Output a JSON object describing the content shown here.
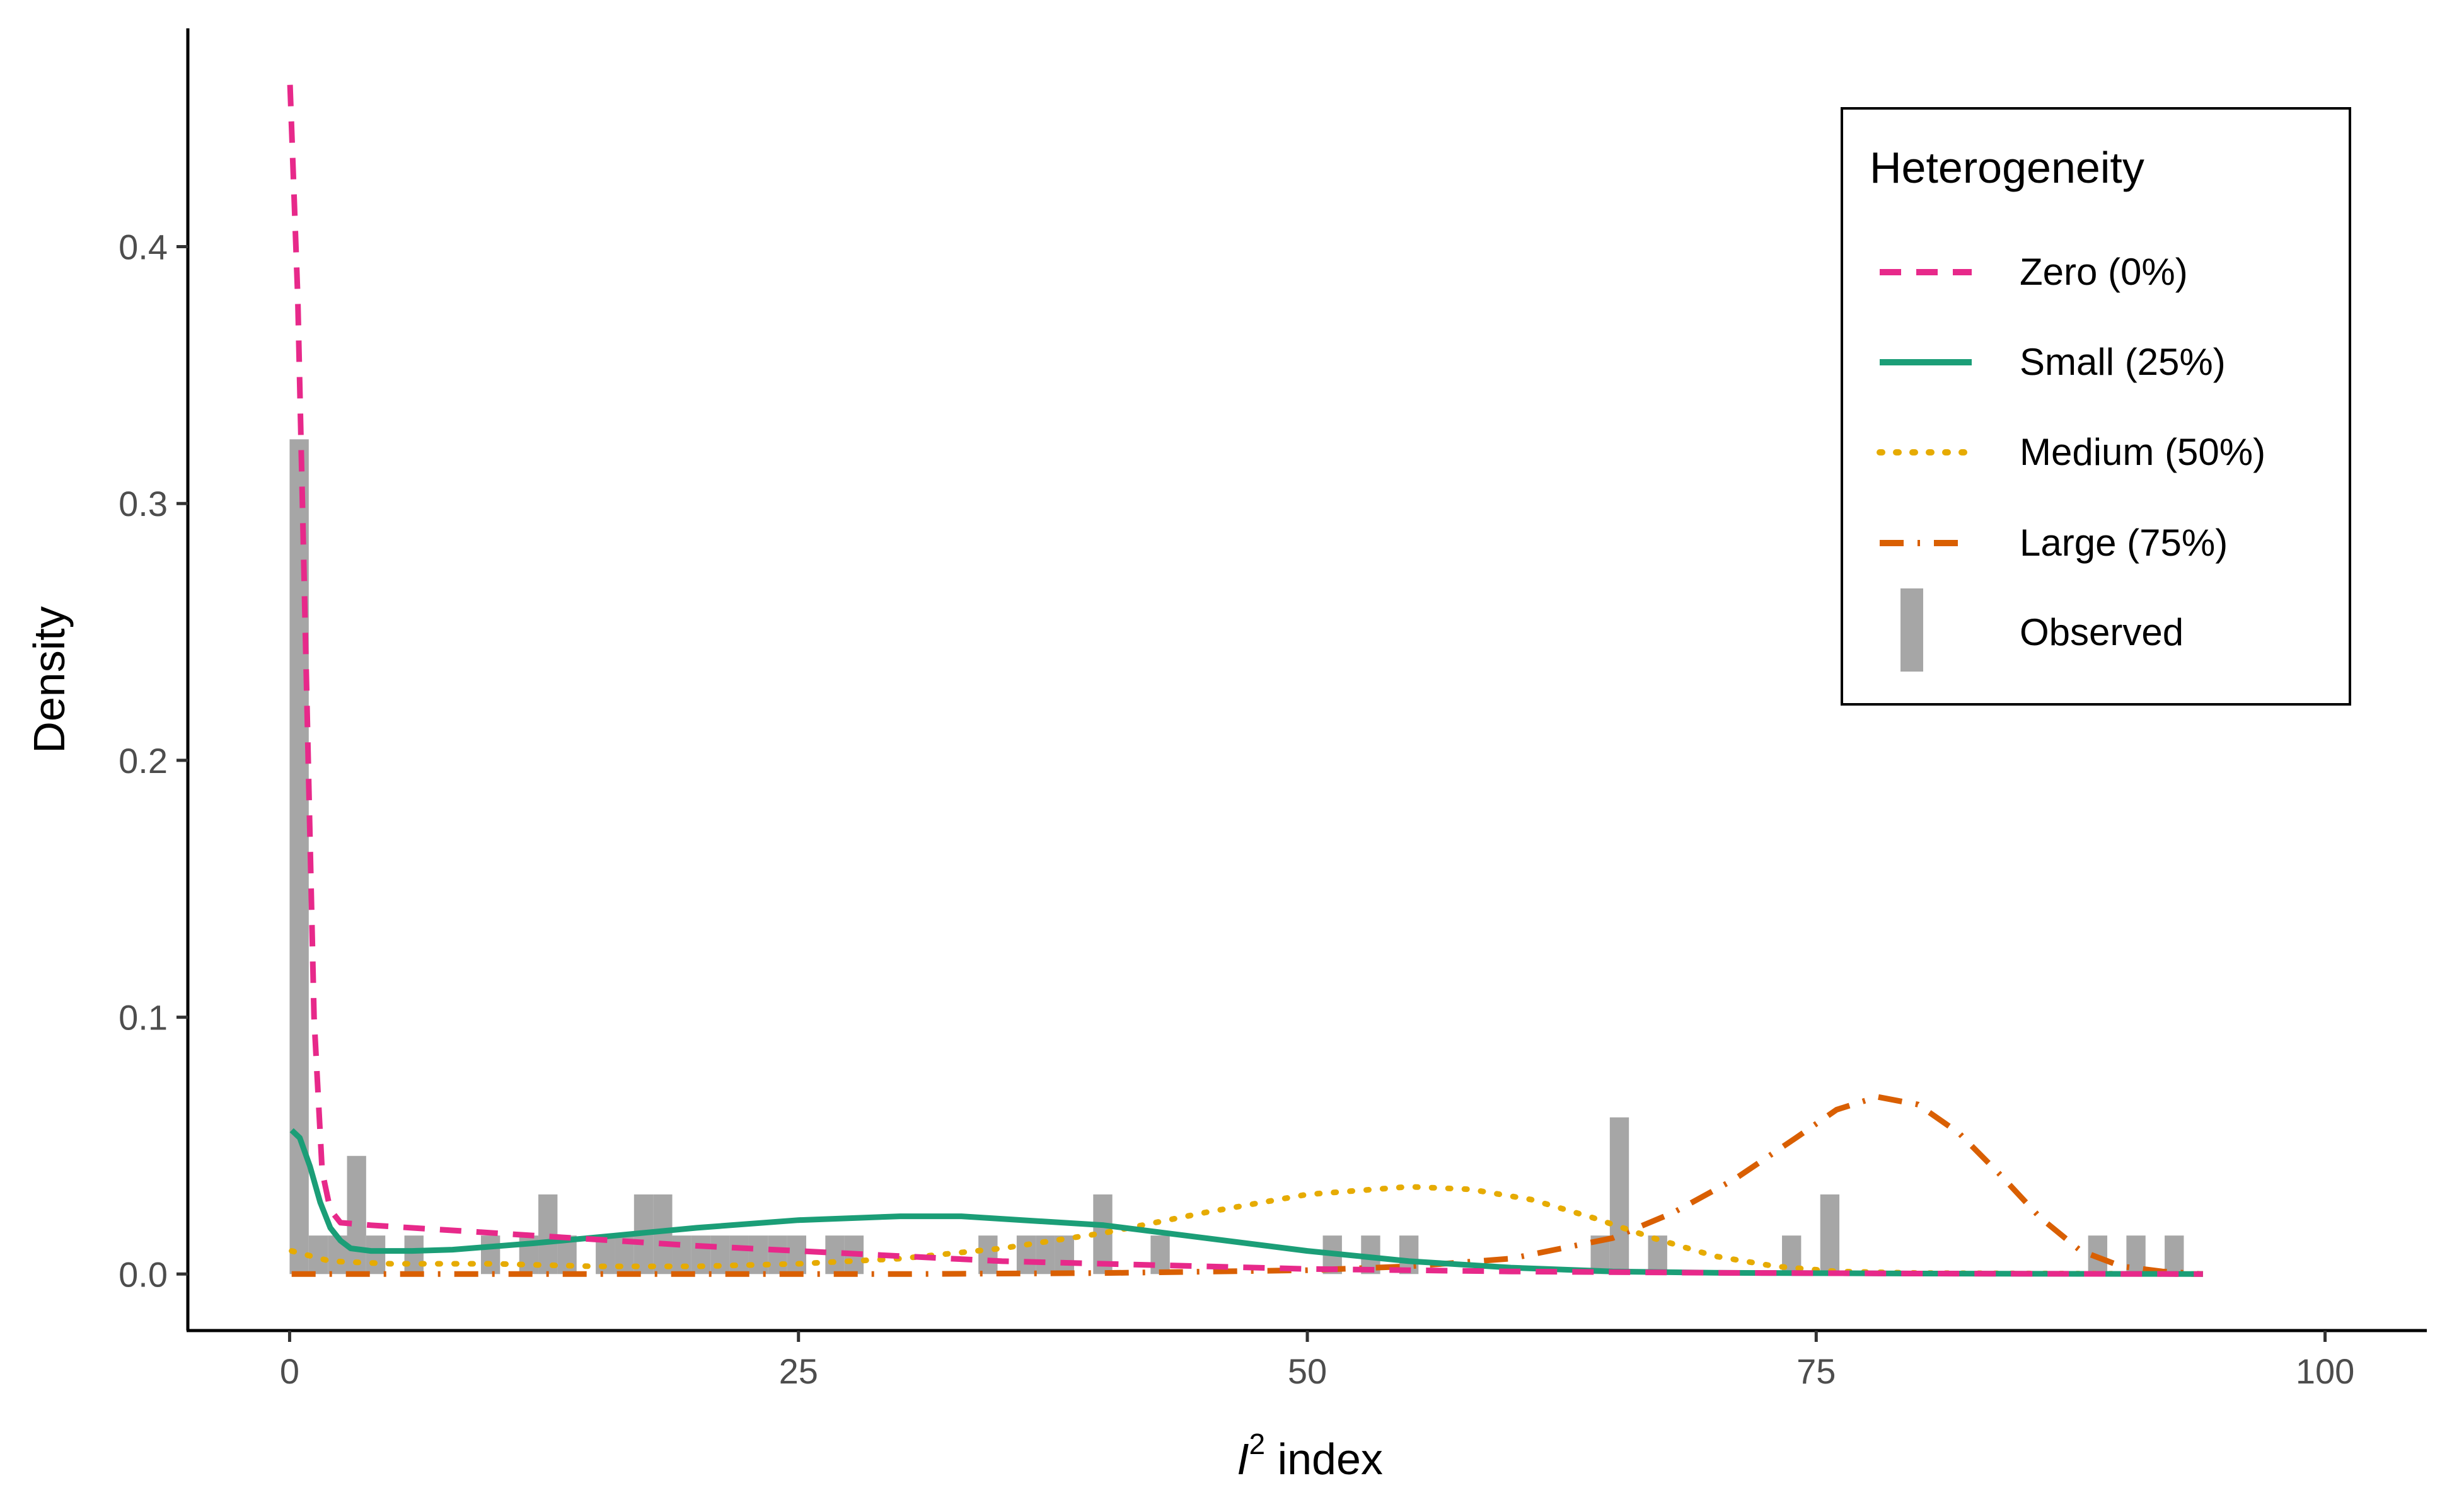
{
  "chart_data": {
    "type": "histogram with density curves",
    "xlabel": {
      "base": "I",
      "superscript": "2",
      "rest": " index"
    },
    "ylabel": "Density",
    "xlim": [
      -5,
      105
    ],
    "ylim": [
      -0.022,
      0.485
    ],
    "x_ticks": [
      {
        "value": 0,
        "label": "0"
      },
      {
        "value": 25,
        "label": "25"
      },
      {
        "value": 50,
        "label": "50"
      },
      {
        "value": 75,
        "label": "75"
      },
      {
        "value": 100,
        "label": "100"
      }
    ],
    "y_ticks": [
      {
        "value": 0.0,
        "label": "0.0"
      },
      {
        "value": 0.1,
        "label": "0.1"
      },
      {
        "value": 0.2,
        "label": "0.2"
      },
      {
        "value": 0.3,
        "label": "0.3"
      },
      {
        "value": 0.4,
        "label": "0.4"
      }
    ],
    "grid": false,
    "legend": {
      "title": "Heterogeneity",
      "position": "top-right",
      "entries": [
        {
          "label": "Zero (0%)",
          "style": "dashed",
          "color": "#E7298A"
        },
        {
          "label": "Small (25%)",
          "style": "solid",
          "color": "#1B9E77"
        },
        {
          "label": "Medium (50%)",
          "style": "dotted",
          "color": "#E6AB02"
        },
        {
          "label": "Large (75%)",
          "style": "dashdot",
          "color": "#D95F02"
        },
        {
          "label": "Observed",
          "style": "bar",
          "color": "#A6A6A6"
        }
      ]
    },
    "histogram": {
      "name": "Observed",
      "color": "#A6A6A6",
      "bin_width": 0.94,
      "bins": [
        [
          0.0,
          0.325
        ],
        [
          0.94,
          0.015
        ],
        [
          1.88,
          0.015
        ],
        [
          2.82,
          0.046
        ],
        [
          3.76,
          0.015
        ],
        [
          5.64,
          0.015
        ],
        [
          9.4,
          0.015
        ],
        [
          11.28,
          0.015
        ],
        [
          12.22,
          0.031
        ],
        [
          13.16,
          0.015
        ],
        [
          15.04,
          0.015
        ],
        [
          15.98,
          0.015
        ],
        [
          16.92,
          0.031
        ],
        [
          17.86,
          0.031
        ],
        [
          18.8,
          0.015
        ],
        [
          19.74,
          0.015
        ],
        [
          20.68,
          0.015
        ],
        [
          21.62,
          0.015
        ],
        [
          22.56,
          0.015
        ],
        [
          23.5,
          0.015
        ],
        [
          24.44,
          0.015
        ],
        [
          26.32,
          0.015
        ],
        [
          27.26,
          0.015
        ],
        [
          33.84,
          0.015
        ],
        [
          35.72,
          0.015
        ],
        [
          36.66,
          0.015
        ],
        [
          37.6,
          0.015
        ],
        [
          39.48,
          0.031
        ],
        [
          42.3,
          0.015
        ],
        [
          50.76,
          0.015
        ],
        [
          52.64,
          0.015
        ],
        [
          54.52,
          0.015
        ],
        [
          63.92,
          0.015
        ],
        [
          64.86,
          0.061
        ],
        [
          66.74,
          0.015
        ],
        [
          73.32,
          0.015
        ],
        [
          75.2,
          0.031
        ],
        [
          88.36,
          0.015
        ],
        [
          90.24,
          0.015
        ],
        [
          92.12,
          0.015
        ]
      ]
    },
    "series": [
      {
        "name": "Zero (0%)",
        "color": "#E7298A",
        "style": "dashed",
        "points": [
          [
            0.02,
            0.463
          ],
          [
            0.4,
            0.38
          ],
          [
            0.8,
            0.24
          ],
          [
            1.2,
            0.1
          ],
          [
            1.6,
            0.04
          ],
          [
            2,
            0.025
          ],
          [
            2.5,
            0.02
          ],
          [
            4,
            0.019
          ],
          [
            8,
            0.017
          ],
          [
            12,
            0.015
          ],
          [
            16,
            0.013
          ],
          [
            20,
            0.011
          ],
          [
            25,
            0.009
          ],
          [
            30,
            0.007
          ],
          [
            35,
            0.005
          ],
          [
            40,
            0.004
          ],
          [
            45,
            0.003
          ],
          [
            50,
            0.002
          ],
          [
            55,
            0.0015
          ],
          [
            60,
            0.001
          ],
          [
            70,
            0.0005
          ],
          [
            80,
            0.0002
          ],
          [
            94,
            0.0
          ]
        ]
      },
      {
        "name": "Small (25%)",
        "color": "#1B9E77",
        "style": "solid",
        "points": [
          [
            0.1,
            0.056
          ],
          [
            0.5,
            0.053
          ],
          [
            1,
            0.042
          ],
          [
            1.5,
            0.028
          ],
          [
            2,
            0.018
          ],
          [
            2.5,
            0.013
          ],
          [
            3,
            0.01
          ],
          [
            4,
            0.009
          ],
          [
            6,
            0.009
          ],
          [
            8,
            0.0095
          ],
          [
            12,
            0.012
          ],
          [
            16,
            0.015
          ],
          [
            20,
            0.018
          ],
          [
            25,
            0.021
          ],
          [
            30,
            0.0225
          ],
          [
            33,
            0.0225
          ],
          [
            36,
            0.021
          ],
          [
            40,
            0.019
          ],
          [
            45,
            0.014
          ],
          [
            50,
            0.009
          ],
          [
            55,
            0.005
          ],
          [
            60,
            0.0025
          ],
          [
            65,
            0.001
          ],
          [
            70,
            0.0005
          ],
          [
            80,
            0.0002
          ],
          [
            94,
            0.0
          ]
        ]
      },
      {
        "name": "Medium (50%)",
        "color": "#E6AB02",
        "style": "dotted",
        "points": [
          [
            0.1,
            0.009
          ],
          [
            2,
            0.005
          ],
          [
            5,
            0.004
          ],
          [
            10,
            0.004
          ],
          [
            15,
            0.003
          ],
          [
            20,
            0.003
          ],
          [
            25,
            0.004
          ],
          [
            30,
            0.006
          ],
          [
            35,
            0.01
          ],
          [
            40,
            0.016
          ],
          [
            45,
            0.024
          ],
          [
            50,
            0.031
          ],
          [
            55,
            0.034
          ],
          [
            58,
            0.033
          ],
          [
            61,
            0.029
          ],
          [
            64,
            0.022
          ],
          [
            67,
            0.014
          ],
          [
            70,
            0.007
          ],
          [
            73,
            0.003
          ],
          [
            76,
            0.001
          ],
          [
            80,
            0.0004
          ],
          [
            94,
            0.0
          ]
        ]
      },
      {
        "name": "Large (75%)",
        "color": "#D95F02",
        "style": "dashdot",
        "points": [
          [
            0.1,
            0.0
          ],
          [
            10,
            0.0
          ],
          [
            20,
            0.0
          ],
          [
            30,
            0.0
          ],
          [
            40,
            0.0004
          ],
          [
            50,
            0.0015
          ],
          [
            55,
            0.003
          ],
          [
            60,
            0.006
          ],
          [
            65,
            0.014
          ],
          [
            68,
            0.024
          ],
          [
            71,
            0.037
          ],
          [
            74,
            0.053
          ],
          [
            76,
            0.064
          ],
          [
            78,
            0.069
          ],
          [
            80,
            0.066
          ],
          [
            82,
            0.055
          ],
          [
            84,
            0.039
          ],
          [
            86,
            0.022
          ],
          [
            88,
            0.009
          ],
          [
            90,
            0.003
          ],
          [
            92,
            0.001
          ],
          [
            94,
            0.0
          ]
        ]
      }
    ]
  }
}
